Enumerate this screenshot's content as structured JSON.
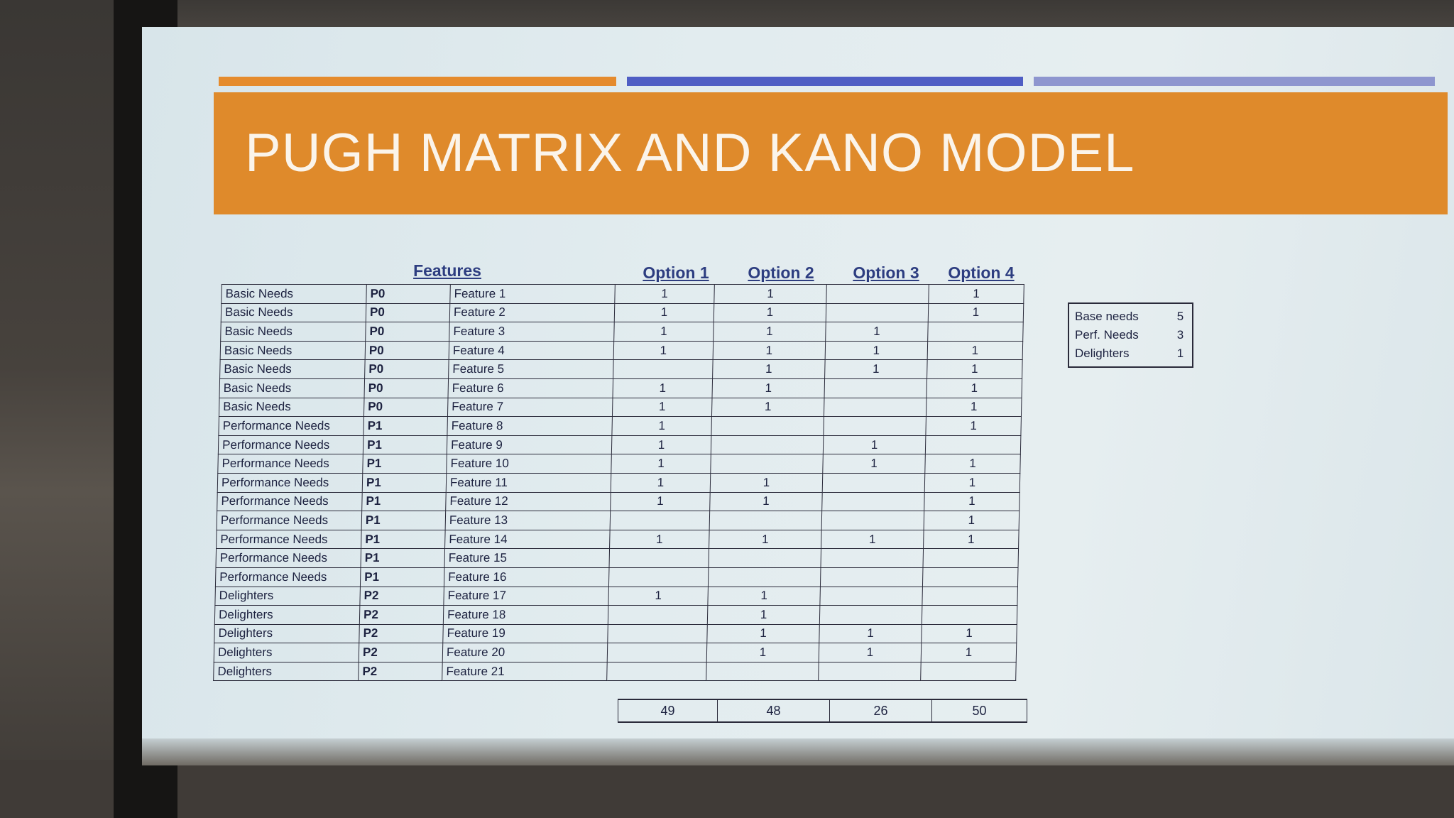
{
  "title": "PUGH MATRIX AND KANO MODEL",
  "colors": {
    "title_bar": "#df8a2b",
    "title_text": "#fbf4ea",
    "line_orange": "#e58b2d",
    "line_blue": "#4f5ec4",
    "line_lavender": "#8e96cf",
    "header_text": "#2d3d80"
  },
  "table": {
    "features_header": "Features",
    "option_headers": [
      "Option 1",
      "Option 2",
      "Option 3",
      "Option 4"
    ],
    "rows": [
      {
        "category": "Basic Needs",
        "priority": "P0",
        "feature": "Feature 1",
        "options": [
          "1",
          "1",
          "",
          "1"
        ]
      },
      {
        "category": "Basic Needs",
        "priority": "P0",
        "feature": "Feature 2",
        "options": [
          "1",
          "1",
          "",
          "1"
        ]
      },
      {
        "category": "Basic Needs",
        "priority": "P0",
        "feature": "Feature 3",
        "options": [
          "1",
          "1",
          "1",
          ""
        ]
      },
      {
        "category": "Basic Needs",
        "priority": "P0",
        "feature": "Feature 4",
        "options": [
          "1",
          "1",
          "1",
          "1"
        ]
      },
      {
        "category": "Basic Needs",
        "priority": "P0",
        "feature": "Feature 5",
        "options": [
          "",
          "1",
          "1",
          "1"
        ]
      },
      {
        "category": "Basic Needs",
        "priority": "P0",
        "feature": "Feature 6",
        "options": [
          "1",
          "1",
          "",
          "1"
        ]
      },
      {
        "category": "Basic Needs",
        "priority": "P0",
        "feature": "Feature 7",
        "options": [
          "1",
          "1",
          "",
          "1"
        ]
      },
      {
        "category": "Performance Needs",
        "priority": "P1",
        "feature": "Feature 8",
        "options": [
          "1",
          "",
          "",
          "1"
        ]
      },
      {
        "category": "Performance Needs",
        "priority": "P1",
        "feature": "Feature 9",
        "options": [
          "1",
          "",
          "1",
          ""
        ]
      },
      {
        "category": "Performance Needs",
        "priority": "P1",
        "feature": "Feature 10",
        "options": [
          "1",
          "",
          "1",
          "1"
        ]
      },
      {
        "category": "Performance Needs",
        "priority": "P1",
        "feature": "Feature 11",
        "options": [
          "1",
          "1",
          "",
          "1"
        ]
      },
      {
        "category": "Performance Needs",
        "priority": "P1",
        "feature": "Feature 12",
        "options": [
          "1",
          "1",
          "",
          "1"
        ]
      },
      {
        "category": "Performance Needs",
        "priority": "P1",
        "feature": "Feature 13",
        "options": [
          "",
          "",
          "",
          "1"
        ]
      },
      {
        "category": "Performance Needs",
        "priority": "P1",
        "feature": "Feature 14",
        "options": [
          "1",
          "1",
          "1",
          "1"
        ]
      },
      {
        "category": "Performance Needs",
        "priority": "P1",
        "feature": "Feature 15",
        "options": [
          "",
          "",
          "",
          ""
        ]
      },
      {
        "category": "Performance Needs",
        "priority": "P1",
        "feature": "Feature 16",
        "options": [
          "",
          "",
          "",
          ""
        ]
      },
      {
        "category": "Delighters",
        "priority": "P2",
        "feature": "Feature 17",
        "options": [
          "1",
          "1",
          "",
          ""
        ]
      },
      {
        "category": "Delighters",
        "priority": "P2",
        "feature": "Feature 18",
        "options": [
          "",
          "1",
          "",
          ""
        ]
      },
      {
        "category": "Delighters",
        "priority": "P2",
        "feature": "Feature 19",
        "options": [
          "",
          "1",
          "1",
          "1"
        ]
      },
      {
        "category": "Delighters",
        "priority": "P2",
        "feature": "Feature 20",
        "options": [
          "",
          "1",
          "1",
          "1"
        ]
      },
      {
        "category": "Delighters",
        "priority": "P2",
        "feature": "Feature 21",
        "options": [
          "",
          "",
          "",
          ""
        ]
      }
    ],
    "totals": [
      "49",
      "48",
      "26",
      "50"
    ]
  },
  "summary": [
    {
      "label": "Base needs",
      "value": "5"
    },
    {
      "label": "Perf. Needs",
      "value": "3"
    },
    {
      "label": "Delighters",
      "value": "1"
    }
  ]
}
